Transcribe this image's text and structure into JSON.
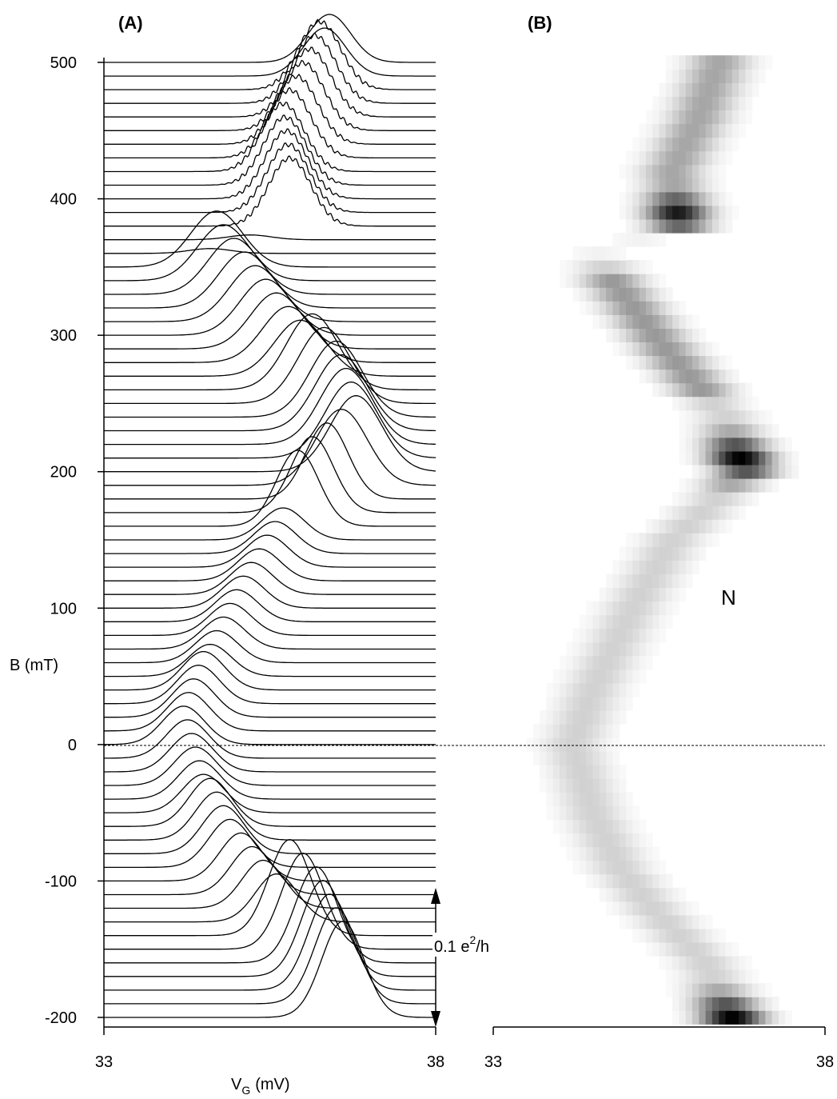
{
  "chart_data": [
    {
      "panel": "(A)",
      "type": "line",
      "xlabel_main": "V",
      "xlabel_sub": "G",
      "xlabel_unit": "(mV)",
      "ylabel": "B  (mT)",
      "xlim": [
        33,
        38
      ],
      "ylim": [
        -200,
        500
      ],
      "x_ticks": [
        "33",
        "38"
      ],
      "y_ticks": [
        {
          "value": 500,
          "label": "500"
        },
        {
          "value": 400,
          "label": "400"
        },
        {
          "value": 300,
          "label": "300"
        },
        {
          "value": 200,
          "label": "200"
        },
        {
          "value": 100,
          "label": "100"
        },
        {
          "value": 0,
          "label": "0"
        },
        {
          "value": -100,
          "label": "-100"
        },
        {
          "value": -200,
          "label": "-200"
        }
      ],
      "offset_step_mT": 10,
      "scale_bar_label": "0.1 e",
      "scale_bar_sup": "2",
      "scale_bar_tail": "/h",
      "scale_bar_value": 0.1,
      "zero_line_B": 0,
      "peak_center_ridge": [
        {
          "B": -200,
          "Vg": 36.6
        },
        {
          "B": -160,
          "Vg": 36.2
        },
        {
          "B": -120,
          "Vg": 35.4
        },
        {
          "B": -90,
          "Vg": 34.9
        },
        {
          "B": -50,
          "Vg": 34.5
        },
        {
          "B": 0,
          "Vg": 34.2
        },
        {
          "B": 40,
          "Vg": 34.5
        },
        {
          "B": 100,
          "Vg": 35.1
        },
        {
          "B": 150,
          "Vg": 35.7
        },
        {
          "B": 200,
          "Vg": 36.8
        },
        {
          "B": 240,
          "Vg": 36.5
        },
        {
          "B": 290,
          "Vg": 35.6
        },
        {
          "B": 340,
          "Vg": 34.8
        },
        {
          "B": 360,
          "Vg": 34.6
        },
        {
          "B": 380,
          "Vg": 35.8
        },
        {
          "B": 420,
          "Vg": 35.7
        },
        {
          "B": 460,
          "Vg": 36.1
        },
        {
          "B": 500,
          "Vg": 36.4
        }
      ]
    },
    {
      "panel": "(B)",
      "type": "heatmap",
      "xlim": [
        33,
        38
      ],
      "ylim": [
        -200,
        500
      ],
      "x_ticks": [
        "33",
        "38"
      ],
      "annotation": "N",
      "colormap": "white-to-black",
      "dark_regions": [
        {
          "B": 390,
          "Vg": 35.9,
          "intensity": 0.9
        },
        {
          "B": 210,
          "Vg": 36.9,
          "intensity": 1.0
        },
        {
          "B": -200,
          "Vg": 36.8,
          "intensity": 1.0
        }
      ]
    }
  ],
  "colors": {
    "trace": "#000000",
    "background": "#ffffff",
    "heatmap_max": "#000000"
  }
}
